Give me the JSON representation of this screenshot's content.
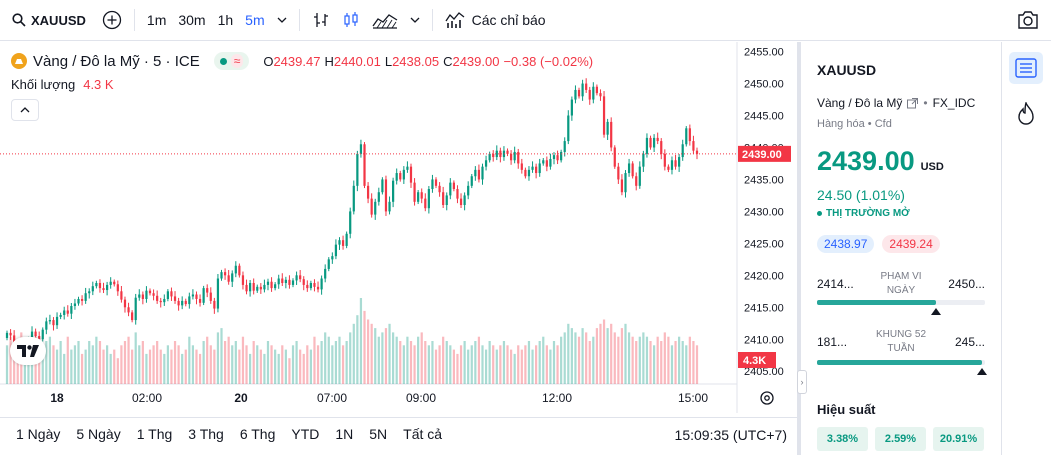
{
  "toolbar": {
    "symbol": "XAUUSD",
    "intervals": [
      "1m",
      "30m",
      "1h",
      "5m"
    ],
    "active_interval": "5m",
    "indicators_label": "Các chỉ báo"
  },
  "legend": {
    "title": "Vàng / Đô la Mỹ · 5 · ICE",
    "o_label": "O",
    "o": "2439.47",
    "h_label": "H",
    "h": "2440.01",
    "l_label": "L",
    "l": "2438.05",
    "c_label": "C",
    "c": "2439.00",
    "change": "−0.38 (−0.02%)",
    "volume_label": "Khối lượng",
    "volume_value": "4.3 K"
  },
  "chart_data": {
    "type": "candlestick",
    "y_ticks": [
      2455,
      2450,
      2445,
      2440,
      2435,
      2430,
      2425,
      2420,
      2415,
      2410,
      2405
    ],
    "y_tick_labels": [
      "2455.00",
      "2450.00",
      "2445.00",
      "2440.00",
      "2435.00",
      "2430.00",
      "2425.00",
      "2420.00",
      "2415.00",
      "2410.00",
      "2405.00"
    ],
    "ylim": [
      2403,
      2456.5
    ],
    "x_tick_labels": [
      "18",
      "02:00",
      "20",
      "07:00",
      "09:00",
      "12:00",
      "15:00"
    ],
    "x_tick_bold": [
      true,
      false,
      true,
      false,
      false,
      false,
      false
    ],
    "last_price": 2439.0,
    "last_price_label": "2439.00",
    "last_volume_label": "4.3K",
    "price_path": [
      2410.2,
      2411.0,
      2410.6,
      2409.5,
      2409.0,
      2408.3,
      2408.8,
      2409.8,
      2411.2,
      2410.5,
      2410.0,
      2411.5,
      2412.8,
      2413.0,
      2412.2,
      2413.5,
      2413.8,
      2414.5,
      2414.0,
      2415.2,
      2415.6,
      2416.3,
      2416.0,
      2417.2,
      2417.5,
      2418.3,
      2418.8,
      2418.0,
      2417.7,
      2418.5,
      2419.0,
      2418.6,
      2417.5,
      2416.2,
      2415.0,
      2414.2,
      2413.0,
      2416.5,
      2417.0,
      2416.3,
      2417.6,
      2417.2,
      2416.8,
      2416.0,
      2415.8,
      2416.3,
      2417.5,
      2416.7,
      2416.0,
      2415.3,
      2416.0,
      2415.5,
      2416.7,
      2417.0,
      2416.3,
      2415.7,
      2418.0,
      2417.3,
      2416.0,
      2414.8,
      2419.5,
      2420.5,
      2420.0,
      2419.0,
      2420.3,
      2421.5,
      2420.0,
      2418.5,
      2417.5,
      2418.8,
      2417.6,
      2418.2,
      2417.8,
      2418.5,
      2419.0,
      2418.0,
      2418.6,
      2419.5,
      2418.8,
      2419.3,
      2418.5,
      2419.2,
      2420.0,
      2419.4,
      2418.5,
      2418.0,
      2418.8,
      2418.2,
      2417.8,
      2419.5,
      2421.0,
      2422.5,
      2423.0,
      2424.8,
      2425.5,
      2424.6,
      2426.5,
      2430.0,
      2434.0,
      2439.0,
      2440.5,
      2434.0,
      2432.0,
      2429.5,
      2431.5,
      2433.0,
      2435.0,
      2430.0,
      2431.5,
      2434.8,
      2436.0,
      2435.0,
      2436.5,
      2437.0,
      2434.5,
      2431.5,
      2433.0,
      2432.0,
      2430.5,
      2433.5,
      2435.0,
      2434.0,
      2433.0,
      2431.0,
      2432.5,
      2434.5,
      2433.5,
      2432.0,
      2431.0,
      2432.5,
      2434.0,
      2435.5,
      2436.5,
      2435.0,
      2437.0,
      2438.0,
      2439.0,
      2438.5,
      2439.5,
      2438.5,
      2439.5,
      2439.0,
      2438.0,
      2439.3,
      2437.5,
      2436.5,
      2435.5,
      2436.5,
      2437.0,
      2436.0,
      2437.5,
      2438.0,
      2437.0,
      2438.2,
      2438.8,
      2438.0,
      2439.3,
      2441.0,
      2445.0,
      2447.5,
      2449.0,
      2448.0,
      2450.0,
      2449.0,
      2447.5,
      2449.5,
      2448.5,
      2448.0,
      2442.0,
      2444.0,
      2440.0,
      2437.0,
      2435.0,
      2433.0,
      2436.0,
      2437.5,
      2435.5,
      2434.0,
      2437.0,
      2439.0,
      2441.5,
      2440.0,
      2441.5,
      2441.0,
      2439.0,
      2437.0,
      2436.5,
      2438.0,
      2437.0,
      2438.5,
      2440.5,
      2443.0,
      2441.0,
      2439.5,
      2439.0
    ],
    "volumes": [
      0.45,
      0.55,
      0.35,
      0.5,
      0.6,
      0.4,
      0.45,
      0.5,
      0.55,
      0.3,
      0.45,
      0.5,
      0.55,
      0.45,
      0.4,
      0.5,
      0.35,
      0.55,
      0.4,
      0.45,
      0.5,
      0.35,
      0.4,
      0.5,
      0.45,
      0.55,
      0.5,
      0.4,
      0.45,
      0.35,
      0.4,
      0.3,
      0.45,
      0.5,
      0.55,
      0.4,
      0.6,
      0.45,
      0.5,
      0.35,
      0.4,
      0.45,
      0.5,
      0.4,
      0.35,
      0.45,
      0.4,
      0.5,
      0.45,
      0.35,
      0.4,
      0.55,
      0.45,
      0.4,
      0.35,
      0.5,
      0.55,
      0.45,
      0.4,
      0.6,
      0.65,
      0.5,
      0.55,
      0.45,
      0.5,
      0.4,
      0.55,
      0.45,
      0.35,
      0.5,
      0.45,
      0.4,
      0.35,
      0.5,
      0.45,
      0.4,
      0.35,
      0.45,
      0.4,
      0.3,
      0.45,
      0.5,
      0.4,
      0.35,
      0.45,
      0.4,
      0.55,
      0.45,
      0.5,
      0.6,
      0.55,
      0.45,
      0.5,
      0.55,
      0.45,
      0.5,
      0.6,
      0.7,
      0.8,
      1.0,
      0.85,
      0.75,
      0.7,
      0.65,
      0.55,
      0.6,
      0.65,
      0.7,
      0.6,
      0.55,
      0.5,
      0.45,
      0.55,
      0.5,
      0.45,
      0.55,
      0.6,
      0.5,
      0.45,
      0.5,
      0.4,
      0.45,
      0.55,
      0.5,
      0.45,
      0.4,
      0.35,
      0.45,
      0.5,
      0.4,
      0.45,
      0.5,
      0.55,
      0.45,
      0.4,
      0.5,
      0.45,
      0.4,
      0.45,
      0.5,
      0.45,
      0.4,
      0.35,
      0.45,
      0.4,
      0.45,
      0.5,
      0.4,
      0.45,
      0.5,
      0.55,
      0.45,
      0.4,
      0.5,
      0.45,
      0.55,
      0.6,
      0.7,
      0.65,
      0.6,
      0.55,
      0.65,
      0.6,
      0.5,
      0.55,
      0.65,
      0.7,
      0.75,
      0.65,
      0.7,
      0.6,
      0.55,
      0.65,
      0.7,
      0.6,
      0.55,
      0.5,
      0.55,
      0.6,
      0.55,
      0.5,
      0.45,
      0.55,
      0.5,
      0.6,
      0.55,
      0.45,
      0.5,
      0.55,
      0.5,
      0.45,
      0.55,
      0.5,
      0.45,
      0.5
    ]
  },
  "bottom": {
    "ranges": [
      "1 Ngày",
      "5 Ngày",
      "1 Thg",
      "3 Thg",
      "6 Thg",
      "YTD",
      "1N",
      "5N",
      "Tất cả"
    ],
    "clock": "15:09:35 (UTC+7)"
  },
  "panel": {
    "symbol": "XAUUSD",
    "description": "Vàng / Đô la Mỹ",
    "exchange": "FX_IDC",
    "category": "Hàng hóa",
    "subcategory": "Cfd",
    "price": "2439.00",
    "currency": "USD",
    "change": "24.50 (1.01%)",
    "market_status": "THỊ TRƯỜNG MỞ",
    "bid": "2438.97",
    "ask": "2439.24",
    "day_low": "2414...",
    "day_high": "2450...",
    "day_label_1": "PHẠM VI",
    "day_label_2": "NGÀY",
    "day_position": 0.71,
    "week_low": "181...",
    "week_high": "245...",
    "week_label_1": "KHUNG 52",
    "week_label_2": "TUẦN",
    "week_position": 0.98,
    "perf_title": "Hiệu suất",
    "perf": [
      "3.38%",
      "2.59%",
      "20.91%"
    ]
  },
  "colors": {
    "up": "#089981",
    "down": "#f23645",
    "accent": "#2962ff"
  }
}
